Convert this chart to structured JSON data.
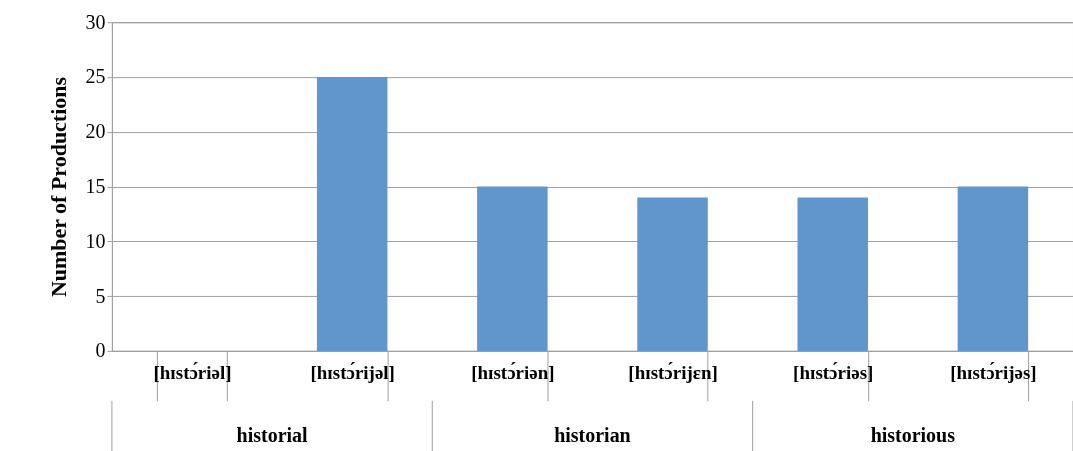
{
  "chart_data": {
    "type": "bar",
    "ylabel": "Number of Productions",
    "categories": [
      "[hɪstɔ́riəl]",
      "[hɪstɔ́rijəl]",
      "[hɪstɔ́riən]",
      "[hɪstɔ́rijɛn]",
      "[hɪstɔ́riəs]",
      "[hɪstɔ́rijəs]"
    ],
    "values": [
      0,
      25,
      15,
      14,
      14,
      15
    ],
    "color": "#6096cb",
    "ylim": [
      0,
      30
    ],
    "yticks": [
      0,
      5,
      10,
      15,
      20,
      25,
      30
    ],
    "grid": "y",
    "annotations": [
      "historial",
      "historian",
      "historious"
    ]
  }
}
